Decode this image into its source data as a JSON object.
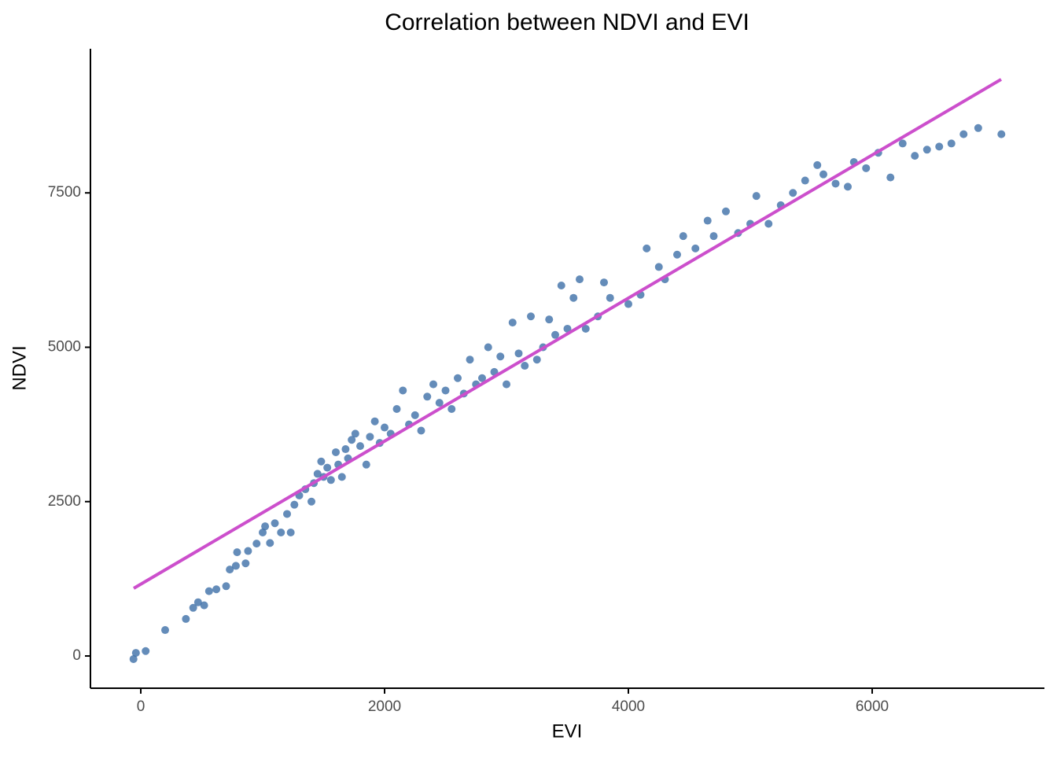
{
  "chart_data": {
    "type": "scatter",
    "title": "Correlation between NDVI and EVI",
    "x_label": "EVI",
    "y_label": "NDVI",
    "series": [
      {
        "color": "#3D6FA8",
        "x": [
          -60,
          -40,
          40,
          200,
          370,
          430,
          470,
          520,
          560,
          620,
          700,
          730,
          780,
          790,
          860,
          880,
          950,
          1000,
          1020,
          1060,
          1100,
          1150,
          1200,
          1230,
          1260,
          1300,
          1350,
          1400,
          1420,
          1450,
          1480,
          1500,
          1530,
          1560,
          1600,
          1620,
          1650,
          1680,
          1700,
          1730,
          1760,
          1800,
          1850,
          1880,
          1920,
          1960,
          2000,
          2050,
          2100,
          2150,
          2200,
          2250,
          2300,
          2350,
          2400,
          2450,
          2500,
          2550,
          2600,
          2650,
          2700,
          2750,
          2800,
          2850,
          2900,
          2950,
          3000,
          3050,
          3100,
          3150,
          3200,
          3250,
          3300,
          3350,
          3400,
          3450,
          3500,
          3550,
          3600,
          3650,
          3750,
          3850,
          3800,
          4000,
          4100,
          4150,
          4250,
          4300,
          4400,
          4450,
          4550,
          4650,
          4700,
          4800,
          4900,
          5000,
          5050,
          5150,
          5250,
          5350,
          5450,
          5550,
          5600,
          5700,
          5800,
          5850,
          5950,
          6050,
          6150,
          6250,
          6350,
          6450,
          6550,
          6650,
          6750,
          6870,
          7060
        ],
        "values": [
          -50,
          50,
          80,
          420,
          600,
          780,
          870,
          820,
          1050,
          1080,
          1130,
          1400,
          1460,
          1680,
          1500,
          1700,
          1820,
          2000,
          2100,
          1830,
          2150,
          2000,
          2300,
          2000,
          2450,
          2600,
          2700,
          2500,
          2800,
          2950,
          3150,
          2900,
          3050,
          2850,
          3300,
          3100,
          2900,
          3350,
          3200,
          3500,
          3600,
          3400,
          3100,
          3550,
          3800,
          3450,
          3700,
          3600,
          4000,
          4300,
          3750,
          3900,
          3650,
          4200,
          4400,
          4100,
          4300,
          4000,
          4500,
          4250,
          4800,
          4400,
          4500,
          5000,
          4600,
          4850,
          4400,
          5400,
          4900,
          4700,
          5500,
          4800,
          5000,
          5450,
          5200,
          6000,
          5300,
          5800,
          6100,
          5300,
          5500,
          5800,
          6050,
          5700,
          5850,
          6600,
          6300,
          6100,
          6500,
          6800,
          6600,
          7050,
          6800,
          7200,
          6850,
          7000,
          7450,
          7000,
          7300,
          7500,
          7700,
          7950,
          7800,
          7650,
          7600,
          8000,
          7900,
          8150,
          7750,
          8300,
          8100,
          8200,
          8250,
          8300,
          8450,
          8550,
          8450
        ]
      }
    ],
    "fit": {
      "color": "#CC4FCC",
      "x": [
        -58,
        7058
      ],
      "values": [
        1096,
        9338
      ]
    },
    "xlim": [
      -413,
      7413
    ],
    "ylim": [
      -522,
      9834
    ],
    "xticks": [
      0,
      2000,
      4000,
      6000
    ],
    "yticks": [
      0,
      2500,
      5000,
      7500
    ],
    "grid": false
  }
}
